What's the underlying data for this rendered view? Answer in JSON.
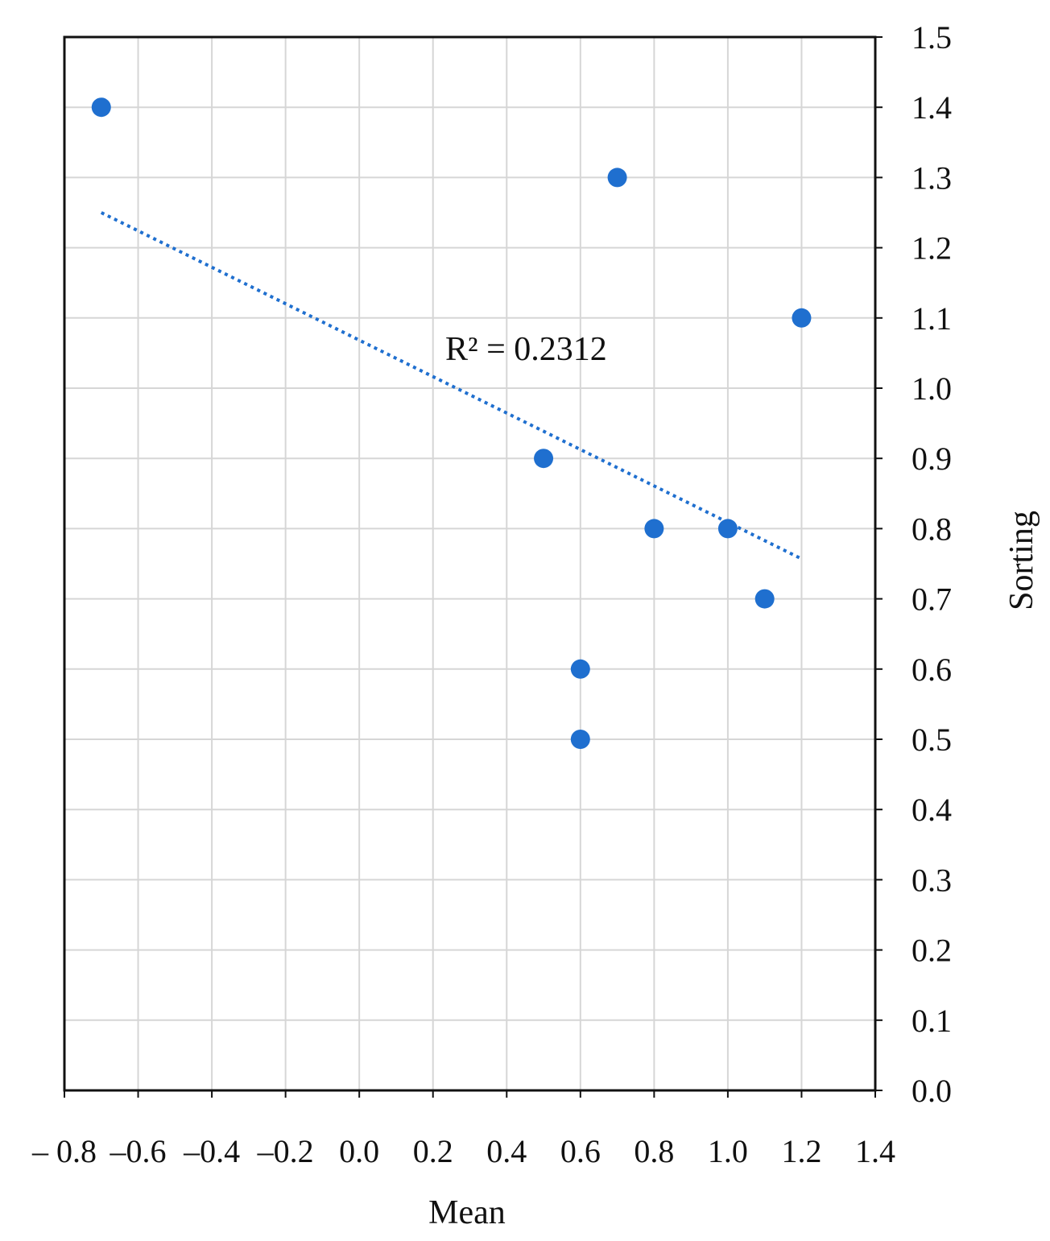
{
  "chart_data": {
    "type": "scatter",
    "xlabel": "Mean",
    "ylabel": "Sorting",
    "xlim": [
      -0.8,
      1.4
    ],
    "ylim": [
      0.0,
      1.5
    ],
    "x_ticks": [
      -0.8,
      -0.6,
      -0.4,
      -0.2,
      0.0,
      0.2,
      0.4,
      0.6,
      0.8,
      1.0,
      1.2,
      1.4
    ],
    "x_tick_labels": [
      "– 0.8",
      "–0.6",
      "–0.4",
      "–0.2",
      "0.0",
      "0.2",
      "0.4",
      "0.6",
      "0.8",
      "1.0",
      "1.2",
      "1.4"
    ],
    "y_ticks": [
      0.0,
      0.1,
      0.2,
      0.3,
      0.4,
      0.5,
      0.6,
      0.7,
      0.8,
      0.9,
      1.0,
      1.1,
      1.2,
      1.3,
      1.4,
      1.5
    ],
    "y_tick_labels": [
      "0.0",
      "0.1",
      "0.2",
      "0.3",
      "0.4",
      "0.5",
      "0.6",
      "0.7",
      "0.8",
      "0.9",
      "1.0",
      "1.1",
      "1.2",
      "1.3",
      "1.4",
      "1.5"
    ],
    "y_axis_side": "right",
    "grid": true,
    "series": [
      {
        "points": [
          {
            "x": -0.7,
            "y": 1.4
          },
          {
            "x": 0.7,
            "y": 1.3
          },
          {
            "x": 1.2,
            "y": 1.1
          },
          {
            "x": 0.5,
            "y": 0.9
          },
          {
            "x": 0.8,
            "y": 0.8
          },
          {
            "x": 1.0,
            "y": 0.8
          },
          {
            "x": 1.1,
            "y": 0.7
          },
          {
            "x": 0.6,
            "y": 0.6
          },
          {
            "x": 0.6,
            "y": 0.5
          }
        ],
        "color": "#1f6fcf"
      }
    ],
    "trendline": {
      "type": "linear",
      "style": "dotted",
      "color": "#1f6fcf",
      "x_range": [
        -0.7,
        1.2
      ],
      "y_range": [
        1.25,
        0.757
      ]
    },
    "annotations": [
      {
        "text": "R² = 0.2312"
      }
    ]
  }
}
